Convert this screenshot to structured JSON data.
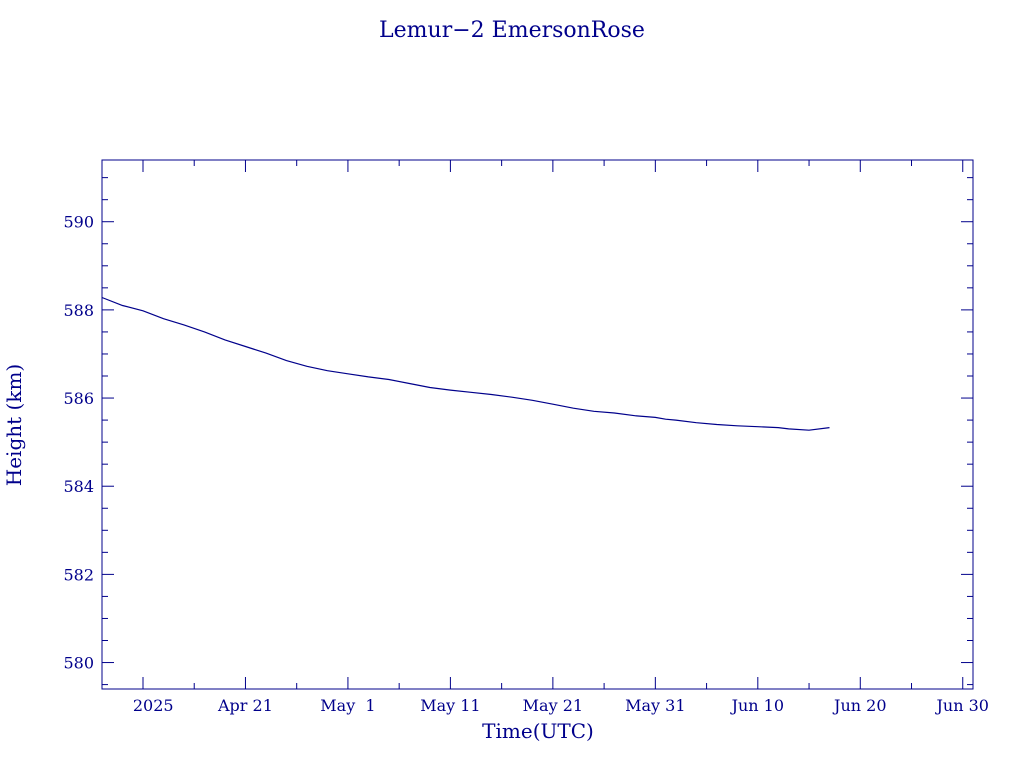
{
  "chart_data": {
    "type": "line",
    "title": "Lemur−2 EmersonRose",
    "xlabel": "Time(UTC)",
    "ylabel": "Height (km)",
    "x_axis": "date",
    "xlim": [
      "2025-04-07",
      "2025-07-01"
    ],
    "ylim": [
      579.4,
      591.4
    ],
    "grid": false,
    "colors": {
      "foreground": "#00008b",
      "background": "#ffffff"
    },
    "x_ticks": [
      {
        "date": "2025-04-12",
        "label": "2025"
      },
      {
        "date": "2025-04-21",
        "label": "Apr 21"
      },
      {
        "date": "2025-05-01",
        "label": "May  1"
      },
      {
        "date": "2025-05-11",
        "label": "May 11"
      },
      {
        "date": "2025-05-21",
        "label": "May 21"
      },
      {
        "date": "2025-05-31",
        "label": "May 31"
      },
      {
        "date": "2025-06-10",
        "label": "Jun 10"
      },
      {
        "date": "2025-06-20",
        "label": "Jun 20"
      },
      {
        "date": "2025-06-30",
        "label": "Jun 30"
      }
    ],
    "y_ticks": [
      {
        "value": 580,
        "label": "580"
      },
      {
        "value": 582,
        "label": "582"
      },
      {
        "value": 584,
        "label": "584"
      },
      {
        "value": 586,
        "label": "586"
      },
      {
        "value": 588,
        "label": "588"
      },
      {
        "value": 590,
        "label": "590"
      }
    ],
    "series": [
      {
        "x": [
          "2025-04-07",
          "2025-04-09",
          "2025-04-11",
          "2025-04-13",
          "2025-04-15",
          "2025-04-17",
          "2025-04-19",
          "2025-04-21",
          "2025-04-23",
          "2025-04-25",
          "2025-04-27",
          "2025-04-29",
          "2025-05-01",
          "2025-05-03",
          "2025-05-05",
          "2025-05-07",
          "2025-05-09",
          "2025-05-11",
          "2025-05-13",
          "2025-05-15",
          "2025-05-17",
          "2025-05-19",
          "2025-05-21",
          "2025-05-23",
          "2025-05-25",
          "2025-05-27",
          "2025-05-29",
          "2025-05-31",
          "2025-06-01",
          "2025-06-02",
          "2025-06-04",
          "2025-06-06",
          "2025-06-08",
          "2025-06-10",
          "2025-06-12",
          "2025-06-13",
          "2025-06-15",
          "2025-06-17"
        ],
        "y": [
          588.28,
          588.1,
          587.98,
          587.8,
          587.66,
          587.5,
          587.32,
          587.17,
          587.02,
          586.85,
          586.72,
          586.62,
          586.55,
          586.48,
          586.42,
          586.33,
          586.24,
          586.18,
          586.13,
          586.08,
          586.02,
          585.95,
          585.86,
          585.77,
          585.7,
          585.66,
          585.6,
          585.56,
          585.52,
          585.5,
          585.44,
          585.4,
          585.37,
          585.35,
          585.33,
          585.3,
          585.27,
          585.33
        ]
      }
    ]
  }
}
